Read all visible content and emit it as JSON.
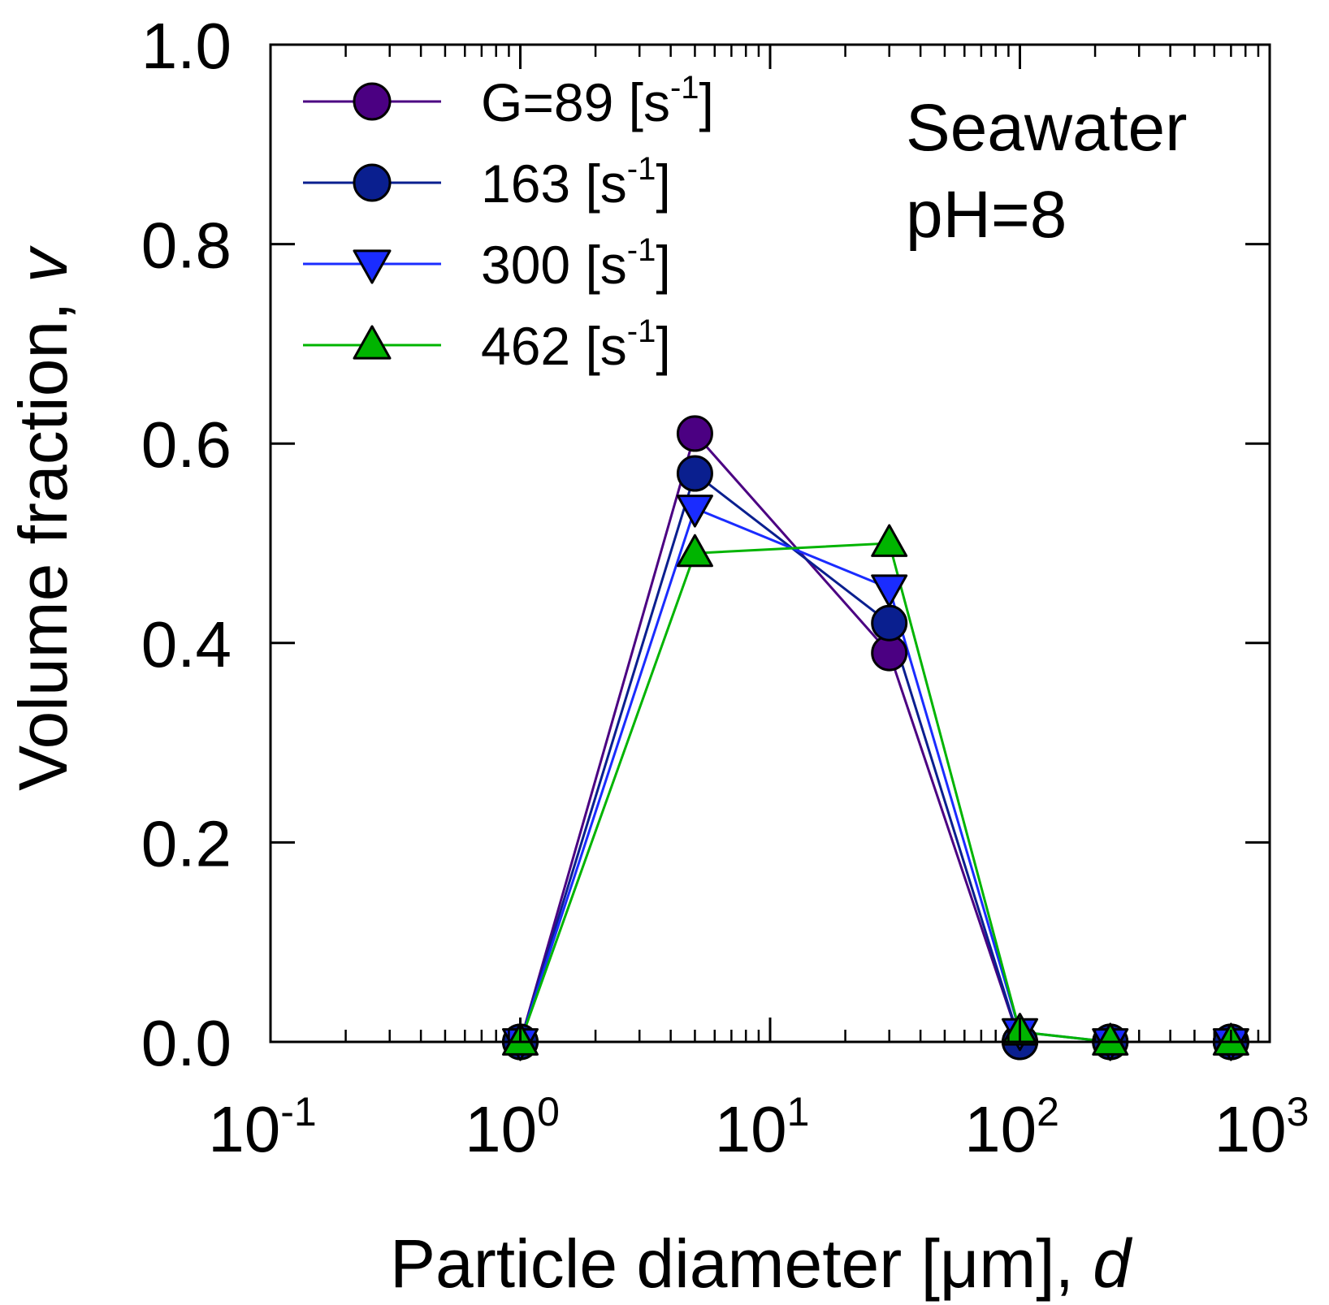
{
  "chart_data": {
    "type": "line",
    "xscale": "log",
    "xlim": [
      0.1,
      1000
    ],
    "ylim": [
      0,
      1.0
    ],
    "xlabel": "Particle diameter [μm], ",
    "xlabel_var": "d",
    "ylabel": "Volume fraction, ",
    "ylabel_var": "v",
    "x_ticks": [
      {
        "base": "10",
        "exp": "-1",
        "value": 0.1
      },
      {
        "base": "10",
        "exp": "0",
        "value": 1
      },
      {
        "base": "10",
        "exp": "1",
        "value": 10
      },
      {
        "base": "10",
        "exp": "2",
        "value": 100
      },
      {
        "base": "10",
        "exp": "3",
        "value": 1000
      }
    ],
    "y_ticks": [
      {
        "label": "0.0",
        "value": 0.0
      },
      {
        "label": "0.2",
        "value": 0.2
      },
      {
        "label": "0.4",
        "value": 0.4
      },
      {
        "label": "0.6",
        "value": 0.6
      },
      {
        "label": "0.8",
        "value": 0.8
      },
      {
        "label": "1.0",
        "value": 1.0
      }
    ],
    "annotation": [
      "Seawater",
      "pH=8"
    ],
    "series": [
      {
        "name": "G=89",
        "unit": "[s",
        "unit_exp": "-1",
        "unit_close": "]",
        "marker": "circle",
        "color": "#4b0082",
        "x": [
          1,
          5,
          30,
          100,
          230,
          700
        ],
        "y": [
          0.0,
          0.61,
          0.39,
          0.0,
          0.0,
          0.0
        ]
      },
      {
        "name": "163",
        "unit": "[s",
        "unit_exp": "-1",
        "unit_close": "]",
        "marker": "circle",
        "color": "#0a1f8f",
        "x": [
          1,
          5,
          30,
          100,
          230,
          700
        ],
        "y": [
          0.0,
          0.57,
          0.42,
          0.0,
          0.0,
          0.0
        ]
      },
      {
        "name": "300",
        "unit": "[s",
        "unit_exp": "-1",
        "unit_close": "]",
        "marker": "triangle-down",
        "color": "#1a2cff",
        "x": [
          1,
          5,
          30,
          100,
          230,
          700
        ],
        "y": [
          0.0,
          0.535,
          0.455,
          0.01,
          0.0,
          0.0
        ]
      },
      {
        "name": "462",
        "unit": "[s",
        "unit_exp": "-1",
        "unit_close": "]",
        "marker": "triangle-up",
        "color": "#00b400",
        "x": [
          1,
          5,
          30,
          100,
          230,
          700
        ],
        "y": [
          0.0,
          0.49,
          0.5,
          0.01,
          0.0,
          0.0
        ]
      }
    ]
  }
}
